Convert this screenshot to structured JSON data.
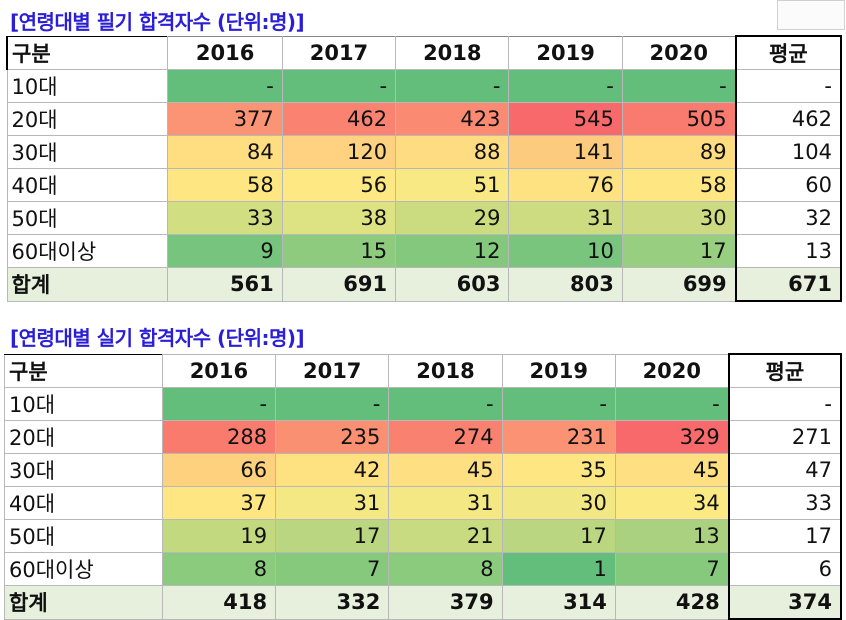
{
  "table1": {
    "title": "[연령대별 필기 합격자수 (단위:명)]",
    "header": [
      "구분",
      "2016",
      "2017",
      "2018",
      "2019",
      "2020",
      "평균"
    ],
    "rows": [
      {
        "label": "10대",
        "values": [
          "-",
          "-",
          "-",
          "-",
          "-"
        ],
        "avg": "-",
        "colors": [
          "#63be7b",
          "#63be7b",
          "#63be7b",
          "#63be7b",
          "#63be7b"
        ]
      },
      {
        "label": "20대",
        "values": [
          "377",
          "462",
          "423",
          "545",
          "505"
        ],
        "avg": "462",
        "colors": [
          "#fb9474",
          "#f98370",
          "#fa8b72",
          "#f8696b",
          "#f97a6e"
        ]
      },
      {
        "label": "30대",
        "values": [
          "84",
          "120",
          "88",
          "141",
          "89"
        ],
        "avg": "104",
        "colors": [
          "#fede81",
          "#fed280",
          "#fedc81",
          "#fdcb7e",
          "#fedd81"
        ]
      },
      {
        "label": "40대",
        "values": [
          "58",
          "56",
          "51",
          "76",
          "58"
        ],
        "avg": "60",
        "colors": [
          "#fee783",
          "#fee883",
          "#f8e984",
          "#fee282",
          "#fee783"
        ]
      },
      {
        "label": "50대",
        "values": [
          "33",
          "38",
          "29",
          "31",
          "30"
        ],
        "avg": "32",
        "colors": [
          "#d2de82",
          "#dde283",
          "#cadb80",
          "#cedc81",
          "#ccdb81"
        ]
      },
      {
        "label": "60대이상",
        "values": [
          "9",
          "15",
          "12",
          "10",
          "17"
        ],
        "avg": "13",
        "colors": [
          "#76c47d",
          "#8ecb7e",
          "#84c87d",
          "#7ac57d",
          "#97ce7f"
        ]
      }
    ],
    "total": {
      "label": "합계",
      "values": [
        "561",
        "691",
        "603",
        "803",
        "699"
      ],
      "avg": "671"
    }
  },
  "table2": {
    "title": "[연령대별 실기 합격자수 (단위:명)]",
    "header": [
      "구분",
      "2016",
      "2017",
      "2018",
      "2019",
      "2020",
      "평균"
    ],
    "rows": [
      {
        "label": "10대",
        "values": [
          "-",
          "-",
          "-",
          "-",
          "-"
        ],
        "avg": "-",
        "colors": [
          "#63be7b",
          "#63be7b",
          "#63be7b",
          "#63be7b",
          "#63be7b"
        ]
      },
      {
        "label": "20대",
        "values": [
          "288",
          "235",
          "274",
          "231",
          "329"
        ],
        "avg": "271",
        "colors": [
          "#f97b6e",
          "#fa9072",
          "#f98170",
          "#fa9273",
          "#f8696b"
        ]
      },
      {
        "label": "30대",
        "values": [
          "66",
          "42",
          "45",
          "35",
          "45"
        ],
        "avg": "47",
        "colors": [
          "#fed17f",
          "#fee282",
          "#fedf82",
          "#fee783",
          "#fedf82"
        ]
      },
      {
        "label": "40대",
        "values": [
          "37",
          "31",
          "31",
          "30",
          "34"
        ],
        "avg": "33",
        "colors": [
          "#fee683",
          "#f4e884",
          "#f4e884",
          "#f1e784",
          "#fbe984"
        ]
      },
      {
        "label": "50대",
        "values": [
          "19",
          "17",
          "21",
          "17",
          "13"
        ],
        "avg": "17",
        "colors": [
          "#c2d980",
          "#bbd680",
          "#c9db81",
          "#bbd680",
          "#a9d17f"
        ]
      },
      {
        "label": "60대이상",
        "values": [
          "8",
          "7",
          "8",
          "1",
          "7"
        ],
        "avg": "6",
        "colors": [
          "#8acb7e",
          "#86c97d",
          "#8acb7e",
          "#63be7b",
          "#86c97d"
        ]
      }
    ],
    "total": {
      "label": "합계",
      "values": [
        "418",
        "332",
        "379",
        "314",
        "428"
      ],
      "avg": "374"
    }
  }
}
